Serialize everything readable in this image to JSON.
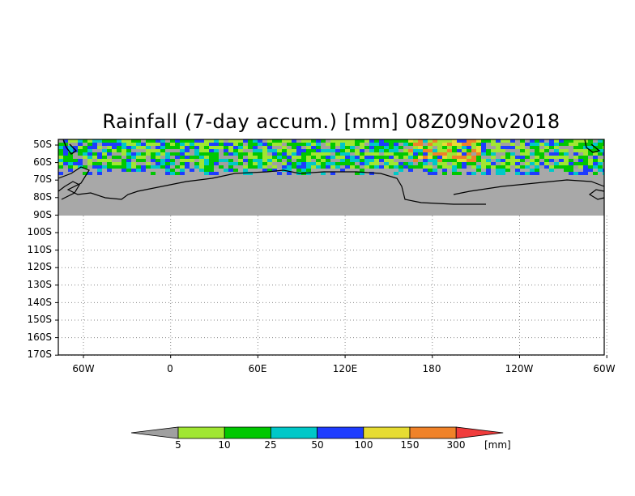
{
  "title": "Rainfall (7-day accum.) [mm] 08Z09Nov2018",
  "y_ticks": [
    "50S",
    "60S",
    "70S",
    "80S",
    "90S",
    "100S",
    "110S",
    "120S",
    "130S",
    "140S",
    "150S",
    "160S",
    "170S"
  ],
  "x_ticks": [
    "60W",
    "0",
    "60E",
    "120E",
    "180",
    "120W",
    "60W"
  ],
  "colorbar": {
    "labels": [
      "5",
      "10",
      "25",
      "50",
      "100",
      "150",
      "300"
    ],
    "unit": "[mm]",
    "colors": [
      "#a0a0a0",
      "#a0e632",
      "#00c800",
      "#00c8c8",
      "#1e3cff",
      "#e6dc32",
      "#f08228",
      "#f03c3c"
    ]
  },
  "colors": {
    "land": "#a8a8a8",
    "grid": "#888888"
  }
}
